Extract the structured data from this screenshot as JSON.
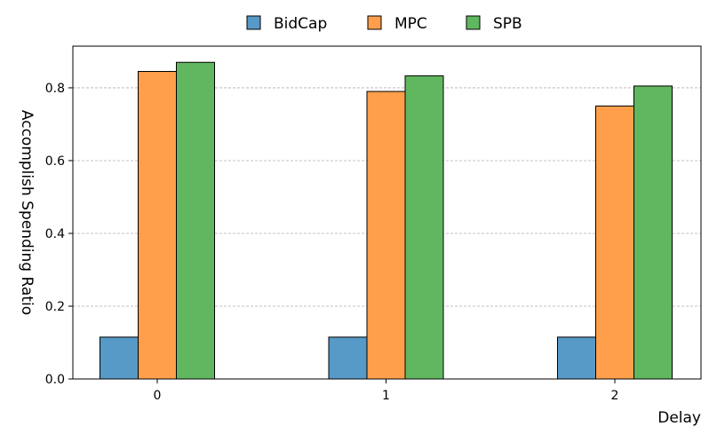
{
  "chart_data": {
    "type": "bar",
    "title": "",
    "xlabel": "Delay",
    "ylabel": "Accomplish Spending Ratio",
    "categories": [
      "0",
      "1",
      "2"
    ],
    "series": [
      {
        "name": "BidCap",
        "color": "#5799c7",
        "values": [
          0.115,
          0.115,
          0.115
        ]
      },
      {
        "name": "MPC",
        "color": "#ff9f4b",
        "values": [
          0.845,
          0.79,
          0.75
        ]
      },
      {
        "name": "SPB",
        "color": "#61b75f",
        "values": [
          0.87,
          0.833,
          0.805
        ]
      }
    ],
    "ylim": [
      0,
      0.9145
    ],
    "yticks": [
      0.0,
      0.2,
      0.4,
      0.6,
      0.8
    ],
    "ytick_labels": [
      "0.0",
      "0.2",
      "0.4",
      "0.6",
      "0.8"
    ],
    "grid": "y-dashed",
    "legend_placement": "top-center"
  }
}
